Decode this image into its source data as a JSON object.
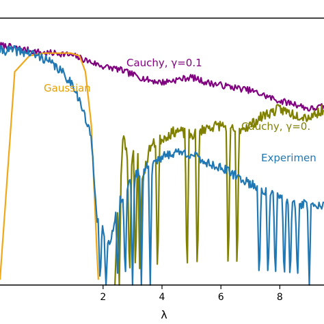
{
  "chart_data": {
    "type": "line",
    "title": "",
    "xlabel": "λ",
    "ylabel": "",
    "xlim": [
      -1.5,
      9.5
    ],
    "ylim": [
      0,
      1
    ],
    "x_ticks": [
      "2",
      "4",
      "6",
      "8"
    ],
    "x_tick_values": [
      2,
      4,
      6,
      8
    ],
    "grid": false,
    "legend": "none (inline labels)",
    "series": [
      {
        "name": "Cauchy, γ=0.1",
        "color": "#800080",
        "x": [
          -1.5,
          -1.0,
          -0.5,
          0.0,
          0.5,
          1.0,
          1.5,
          2.0,
          2.5,
          3.0,
          3.5,
          4.0,
          4.5,
          5.0,
          5.5,
          6.0,
          6.5,
          7.0,
          7.5,
          8.0,
          8.5,
          9.0,
          9.5
        ],
        "y": [
          0.9,
          0.89,
          0.88,
          0.87,
          0.87,
          0.86,
          0.84,
          0.82,
          0.81,
          0.79,
          0.77,
          0.76,
          0.77,
          0.78,
          0.76,
          0.75,
          0.74,
          0.73,
          0.71,
          0.69,
          0.68,
          0.66,
          0.67
        ]
      },
      {
        "name": "Gaussian",
        "color": "#f0a818",
        "x": [
          -1.5,
          -1.0,
          -0.5,
          0.0,
          0.3,
          0.6,
          0.9,
          1.2,
          1.4,
          1.6,
          1.7,
          1.8,
          1.85
        ],
        "y": [
          0.02,
          0.8,
          0.86,
          0.87,
          0.87,
          0.87,
          0.87,
          0.86,
          0.8,
          0.6,
          0.35,
          0.1,
          0.0
        ]
      },
      {
        "name": "Cauchy, γ=0.",
        "color": "#808000",
        "x": [
          2.4,
          2.5,
          2.7,
          2.9,
          3.1,
          3.3,
          3.6,
          4.0,
          4.5,
          5.0,
          5.5,
          6.0,
          6.5,
          7.0,
          7.5,
          8.0,
          8.5,
          9.0,
          9.5
        ],
        "y": [
          0.0,
          0.3,
          0.57,
          0.42,
          0.55,
          0.38,
          0.52,
          0.55,
          0.58,
          0.56,
          0.59,
          0.6,
          0.58,
          0.6,
          0.64,
          0.66,
          0.64,
          0.63,
          0.66
        ]
      },
      {
        "name": "Experimen",
        "color": "#1f77b4",
        "x": [
          -1.5,
          -1.0,
          -0.5,
          0.0,
          0.5,
          1.0,
          1.3,
          1.6,
          1.7,
          1.8,
          2.0,
          2.2,
          2.5,
          3.0,
          3.5,
          4.0,
          4.5,
          5.0,
          5.5,
          6.0,
          6.5,
          7.0,
          7.5,
          8.0,
          8.5,
          9.0,
          9.5
        ],
        "y": [
          0.88,
          0.88,
          0.87,
          0.85,
          0.81,
          0.75,
          0.66,
          0.55,
          0.4,
          0.25,
          0.2,
          0.15,
          0.3,
          0.4,
          0.45,
          0.48,
          0.5,
          0.49,
          0.46,
          0.44,
          0.41,
          0.38,
          0.35,
          0.33,
          0.3,
          0.31,
          0.3
        ]
      }
    ]
  },
  "labels": {
    "cauchy_01": "Cauchy, γ=0.1",
    "gaussian": "Gaussian",
    "cauchy_0": "Cauchy, γ=0.",
    "experiment": "Experimen"
  }
}
